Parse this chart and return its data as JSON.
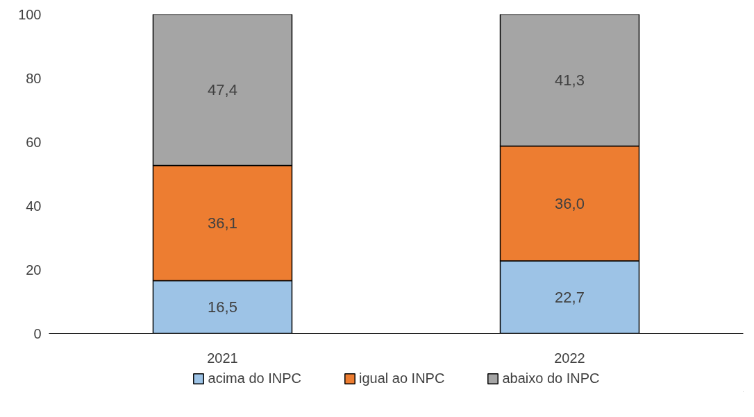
{
  "chart_data": {
    "type": "bar",
    "stacked": true,
    "categories": [
      "2021",
      "2022"
    ],
    "series": [
      {
        "name": "acima do INPC",
        "color": "#9dc3e6",
        "values": [
          16.5,
          22.7
        ],
        "value_labels": [
          "16,5",
          "22,7"
        ]
      },
      {
        "name": "igual ao INPC",
        "color": "#ed7d31",
        "values": [
          36.1,
          36.0
        ],
        "value_labels": [
          "36,1",
          "36,0"
        ]
      },
      {
        "name": "abaixo do INPC",
        "color": "#a5a5a5",
        "values": [
          47.4,
          41.3
        ],
        "value_labels": [
          "47,4",
          "41,3"
        ]
      }
    ],
    "ylim": [
      0,
      100
    ],
    "yticks": [
      0,
      20,
      40,
      60,
      80,
      100
    ],
    "grid": false,
    "legend": "bottom"
  }
}
